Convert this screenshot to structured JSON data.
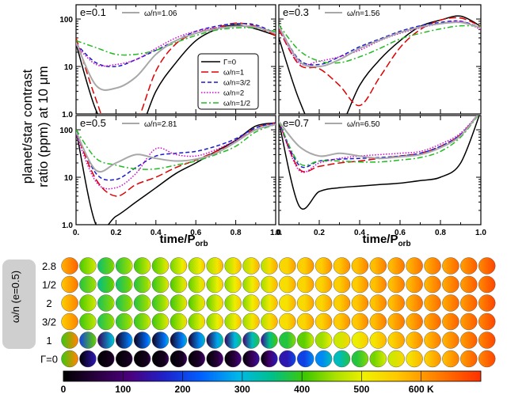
{
  "chart_data": [
    {
      "type": "line",
      "panel": "top-left",
      "title": "e=0.1",
      "annotation": "ω/n=1.06",
      "x": [
        0.0,
        0.1,
        0.2,
        0.3,
        0.4,
        0.5,
        0.6,
        0.7,
        0.8,
        0.9,
        1.0
      ],
      "series": [
        {
          "name": "Γ=0",
          "color": "#000000",
          "dash": "solid",
          "values": [
            30,
            1.2,
            0.3,
            0.3,
            3,
            12,
            35,
            60,
            75,
            62,
            45
          ]
        },
        {
          "name": "ω/n=1",
          "color": "#e00000",
          "dash": "long-dash",
          "values": [
            40,
            2,
            0.2,
            0.6,
            8,
            30,
            50,
            65,
            82,
            70,
            45
          ]
        },
        {
          "name": "ω/n=3/2",
          "color": "#1a1acc",
          "dash": "dashed",
          "values": [
            30,
            12,
            10,
            14,
            22,
            35,
            55,
            70,
            80,
            75,
            50
          ]
        },
        {
          "name": "ω/n=2",
          "color": "#d400d4",
          "dash": "dotted",
          "values": [
            28,
            11,
            11,
            14,
            24,
            40,
            55,
            65,
            70,
            70,
            50
          ]
        },
        {
          "name": "ω/n=1/2",
          "color": "#22bb22",
          "dash": "dash-dot",
          "values": [
            35,
            25,
            18,
            18,
            22,
            32,
            45,
            58,
            65,
            65,
            55
          ]
        },
        {
          "name": "ω/n=1.06",
          "color": "#a8a8a8",
          "dash": "solid",
          "values": [
            32,
            4,
            3.5,
            6,
            18,
            35,
            50,
            62,
            70,
            68,
            50
          ]
        }
      ],
      "xlim": [
        0,
        1
      ],
      "ylim": [
        1,
        200
      ],
      "yscale": "log"
    },
    {
      "type": "line",
      "panel": "top-right",
      "title": "e=0.3",
      "annotation": "ω/n=1.56",
      "x": [
        0.0,
        0.1,
        0.2,
        0.3,
        0.4,
        0.5,
        0.6,
        0.7,
        0.8,
        0.9,
        1.0
      ],
      "series": [
        {
          "name": "Γ=0",
          "color": "#000000",
          "dash": "solid",
          "values": [
            40,
            2,
            0.3,
            0.5,
            4,
            14,
            35,
            70,
            95,
            115,
            70
          ]
        },
        {
          "name": "ω/n=1",
          "color": "#e00000",
          "dash": "long-dash",
          "values": [
            60,
            11,
            9,
            4,
            1.5,
            6,
            25,
            60,
            95,
            105,
            70
          ]
        },
        {
          "name": "ω/n=3/2",
          "color": "#1a1acc",
          "dash": "dashed",
          "values": [
            70,
            14,
            11,
            16,
            26,
            38,
            55,
            72,
            85,
            90,
            65
          ]
        },
        {
          "name": "ω/n=2",
          "color": "#d400d4",
          "dash": "dotted",
          "values": [
            65,
            12,
            13,
            16,
            22,
            35,
            50,
            65,
            80,
            90,
            60
          ]
        },
        {
          "name": "ω/n=1/2",
          "color": "#22bb22",
          "dash": "dash-dot",
          "values": [
            75,
            22,
            13,
            12,
            16,
            24,
            38,
            50,
            62,
            72,
            70
          ]
        },
        {
          "name": "ω/n=1.56",
          "color": "#a8a8a8",
          "dash": "solid",
          "values": [
            70,
            13,
            10,
            14,
            24,
            36,
            52,
            68,
            80,
            85,
            65
          ]
        }
      ],
      "xlim": [
        0,
        1
      ],
      "ylim": [
        1,
        200
      ],
      "yscale": "log"
    },
    {
      "type": "line",
      "panel": "bottom-left",
      "title": "e=0.5",
      "annotation": "ω/n=2.81",
      "x": [
        0.0,
        0.1,
        0.2,
        0.3,
        0.4,
        0.5,
        0.6,
        0.7,
        0.8,
        0.9,
        1.0
      ],
      "series": [
        {
          "name": "Γ=0",
          "color": "#000000",
          "dash": "solid",
          "values": [
            100,
            1.0,
            1.5,
            3,
            6,
            12,
            20,
            35,
            60,
            120,
            140
          ]
        },
        {
          "name": "ω/n=1",
          "color": "#e00000",
          "dash": "long-dash",
          "values": [
            90,
            9,
            4,
            7,
            10,
            16,
            23,
            35,
            55,
            110,
            140
          ]
        },
        {
          "name": "ω/n=3/2",
          "color": "#1a1acc",
          "dash": "dashed",
          "values": [
            95,
            12,
            9,
            16,
            28,
            32,
            35,
            45,
            65,
            110,
            140
          ]
        },
        {
          "name": "ω/n=2",
          "color": "#d400d4",
          "dash": "dotted",
          "values": [
            80,
            8,
            6,
            12,
            40,
            30,
            28,
            38,
            60,
            100,
            135
          ]
        },
        {
          "name": "ω/n=1/2",
          "color": "#22bb22",
          "dash": "dash-dot",
          "values": [
            100,
            25,
            18,
            15,
            15,
            18,
            22,
            30,
            45,
            90,
            130
          ]
        },
        {
          "name": "ω/n=2.81",
          "color": "#a8a8a8",
          "dash": "solid",
          "values": [
            90,
            14,
            20,
            30,
            25,
            22,
            24,
            32,
            55,
            100,
            130
          ]
        }
      ],
      "xlim": [
        0,
        1
      ],
      "ylim": [
        1,
        200
      ],
      "yscale": "log"
    },
    {
      "type": "line",
      "panel": "bottom-right",
      "title": "e=0.7",
      "annotation": "ω/n=6.50",
      "x": [
        0.0,
        0.1,
        0.2,
        0.3,
        0.4,
        0.5,
        0.6,
        0.7,
        0.8,
        0.9,
        1.0
      ],
      "series": [
        {
          "name": "Γ=0",
          "color": "#000000",
          "dash": "solid",
          "values": [
            150,
            2.5,
            5,
            6,
            6.5,
            7,
            7.5,
            8.5,
            10,
            20,
            250
          ]
        },
        {
          "name": "ω/n=1",
          "color": "#e00000",
          "dash": "long-dash",
          "values": [
            150,
            15,
            17,
            20,
            22,
            25,
            28,
            32,
            45,
            80,
            250
          ]
        },
        {
          "name": "ω/n=3/2",
          "color": "#1a1acc",
          "dash": "dashed",
          "values": [
            150,
            18,
            22,
            24,
            25,
            26,
            28,
            32,
            45,
            80,
            250
          ]
        },
        {
          "name": "ω/n=2",
          "color": "#d400d4",
          "dash": "dotted",
          "values": [
            150,
            14,
            20,
            25,
            28,
            30,
            32,
            35,
            50,
            85,
            250
          ]
        },
        {
          "name": "ω/n=1/2",
          "color": "#22bb22",
          "dash": "dash-dot",
          "values": [
            150,
            20,
            22,
            22,
            21,
            21,
            23,
            26,
            35,
            70,
            240
          ]
        },
        {
          "name": "ω/n=6.50",
          "color": "#a8a8a8",
          "dash": "solid",
          "values": [
            150,
            45,
            28,
            32,
            28,
            25,
            27,
            30,
            42,
            75,
            250
          ]
        }
      ],
      "xlim": [
        0,
        1
      ],
      "ylim": [
        1,
        200
      ],
      "yscale": "log"
    }
  ],
  "ylabel_line1": "planet/star contrast",
  "ylabel_line2": "ratio (ppm) at 10 μm",
  "xlabel_main": "time/P",
  "xlabel_sub": "orb",
  "xtick_labels": [
    "0.",
    "0.2",
    "0.4",
    "0.6",
    "0.8",
    "1.0"
  ],
  "ytick_labels": [
    "1.0",
    "10",
    "100"
  ],
  "legend": {
    "placement": "center",
    "entries": [
      {
        "label": "Γ=0",
        "color": "#000000",
        "dash": "solid"
      },
      {
        "label": "ω/n=1",
        "color": "#e00000",
        "dash": "long-dash"
      },
      {
        "label": "ω/n=3/2",
        "color": "#1a1acc",
        "dash": "dashed"
      },
      {
        "label": "ω/n=2",
        "color": "#d400d4",
        "dash": "dotted"
      },
      {
        "label": "ω/n=1/2",
        "color": "#22bb22",
        "dash": "dash-dot"
      }
    ]
  },
  "maps": {
    "ylabel": "ω/n (e=0.5)",
    "rows": [
      "2.8",
      "1/2",
      "2",
      "3/2",
      "1",
      "Γ=0"
    ],
    "columns": 24,
    "row_temps": [
      [
        650,
        480,
        430,
        450,
        470,
        480,
        500,
        510,
        520,
        520,
        525,
        530,
        540,
        550,
        555,
        560,
        565,
        570,
        575,
        580,
        585,
        590,
        600,
        620
      ],
      [
        630,
        450,
        420,
        430,
        450,
        465,
        480,
        490,
        500,
        505,
        510,
        520,
        530,
        540,
        545,
        550,
        555,
        565,
        570,
        575,
        580,
        590,
        600,
        620
      ],
      [
        620,
        480,
        440,
        440,
        450,
        460,
        470,
        480,
        490,
        500,
        505,
        515,
        525,
        535,
        540,
        550,
        560,
        565,
        570,
        580,
        585,
        590,
        600,
        620
      ],
      [
        620,
        470,
        440,
        450,
        460,
        470,
        480,
        490,
        500,
        510,
        515,
        525,
        530,
        540,
        545,
        555,
        560,
        570,
        575,
        580,
        590,
        595,
        600,
        620
      ],
      [
        620,
        420,
        300,
        250,
        240,
        245,
        250,
        260,
        280,
        300,
        320,
        350,
        380,
        420,
        450,
        480,
        500,
        520,
        540,
        560,
        570,
        580,
        600,
        620
      ],
      [
        620,
        150,
        30,
        30,
        30,
        30,
        30,
        40,
        50,
        60,
        80,
        100,
        150,
        200,
        260,
        320,
        380,
        430,
        480,
        520,
        550,
        570,
        600,
        620
      ]
    ],
    "colorbar": {
      "min": 0,
      "max": 700,
      "tick_labels": [
        "0",
        "100",
        "200",
        "300",
        "400",
        "500",
        "600 K"
      ],
      "tick_values": [
        0,
        100,
        200,
        300,
        400,
        500,
        600
      ]
    }
  }
}
